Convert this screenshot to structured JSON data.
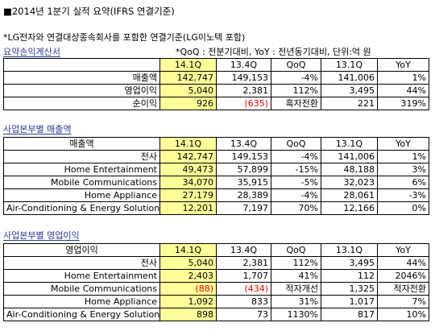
{
  "title": "■2014년 1분기 실적 요약(IFRS 연결기준)",
  "note": "*LG전자와 연결대상종속회사를 포함한 연결기준(LG이노텍 포함)",
  "legend": "*QoQ : 전분기대비, YoY : 전년동기대비, 단위:억 원",
  "summary": {
    "title": "요약손익계산서",
    "headers": [
      "",
      "14.1Q",
      "13.4Q",
      "QoQ",
      "13.1Q",
      "YoY"
    ],
    "rows": [
      [
        "매출액",
        "142,747",
        "149,153",
        "-4%",
        "141,006",
        "1%"
      ],
      [
        "영업이익",
        "5,040",
        "2,381",
        "112%",
        "3,495",
        "44%"
      ],
      [
        "순이익",
        "926",
        "(635)",
        "흑자전환",
        "221",
        "319%"
      ]
    ]
  },
  "sales": {
    "title": "사업본부별 매출액",
    "headers": [
      "매출액",
      "14.1Q",
      "13.4Q",
      "QoQ",
      "13.1Q",
      "YoY"
    ],
    "rows": [
      [
        "전사",
        "142,747",
        "149,153",
        "-4%",
        "141,006",
        "1%"
      ],
      [
        "Home Entertainment",
        "49,473",
        "57,899",
        "-15%",
        "48,188",
        "3%"
      ],
      [
        "Mobile Communications",
        "34,070",
        "35,915",
        "-5%",
        "32,023",
        "6%"
      ],
      [
        "Home Appliance",
        "27,179",
        "28,389",
        "-4%",
        "28,061",
        "-3%"
      ],
      [
        "Air-Conditioning & Energy Solution",
        "12,201",
        "7,197",
        "70%",
        "12,166",
        "0%"
      ]
    ]
  },
  "op": {
    "title": "사업본부별 영업이익",
    "headers": [
      "영업이익",
      "14.1Q",
      "13.4Q",
      "QoQ",
      "13.1Q",
      "YoY"
    ],
    "rows": [
      [
        "전사",
        "5,040",
        "2,381",
        "112%",
        "3,495",
        "44%"
      ],
      [
        "Home Entertainment",
        "2,403",
        "1,707",
        "41%",
        "112",
        "2046%"
      ],
      [
        "Mobile Communications",
        "(88)",
        "(434)",
        "적자개선",
        "1,325",
        "적자전환"
      ],
      [
        "Home Appliance",
        "1,092",
        "833",
        "31%",
        "1,017",
        "7%"
      ],
      [
        "Air-Conditioning & Energy Solution",
        "898",
        "73",
        "1130%",
        "817",
        "10%"
      ]
    ]
  },
  "colors": {
    "highlight": "#ffff99",
    "negative": "#ff0000",
    "section_title": "#2b3a9a"
  }
}
